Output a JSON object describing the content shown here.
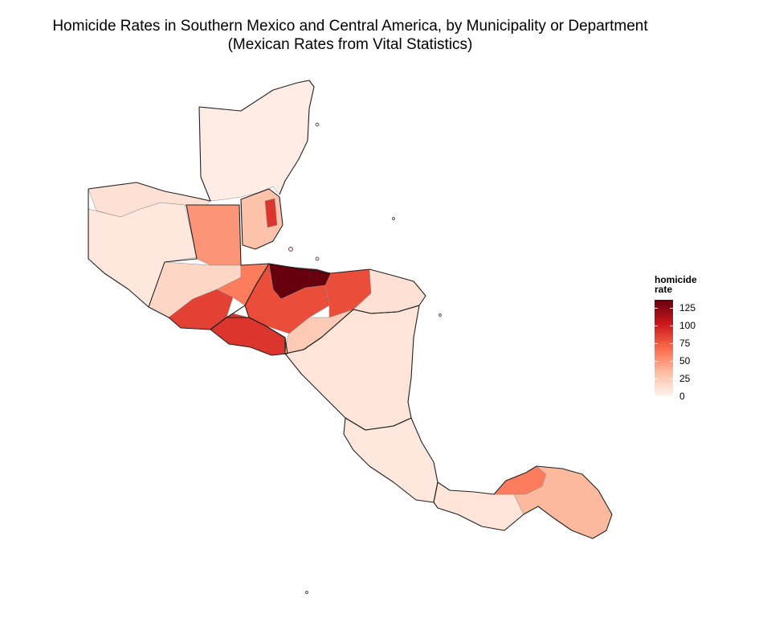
{
  "title_line1": "Homicide Rates in Southern Mexico and Central America, by Municipality or Department",
  "title_line2": "(Mexican Rates from Vital Statistics)",
  "legend": {
    "title_line1": "homicide",
    "title_line2": "rate",
    "ticks": [
      "125",
      "100",
      "75",
      "50",
      "25",
      "0"
    ],
    "tick_values": [
      125,
      100,
      75,
      50,
      25,
      0
    ],
    "max_value": 136,
    "colors": [
      "#fff5f0",
      "#fcbba1",
      "#fb6a4a",
      "#cb181d",
      "#67000d"
    ]
  },
  "regions": [
    {
      "name": "yucatan-peninsula",
      "rate": 5
    },
    {
      "name": "tabasco",
      "rate": 12
    },
    {
      "name": "chiapas",
      "rate": 8
    },
    {
      "name": "peten-guatemala",
      "rate": 50
    },
    {
      "name": "belize",
      "rate": 30
    },
    {
      "name": "belize-city",
      "rate": 90
    },
    {
      "name": "western-guatemala",
      "rate": 18
    },
    {
      "name": "southern-guatemala",
      "rate": 85
    },
    {
      "name": "eastern-guatemala",
      "rate": 60
    },
    {
      "name": "el-salvador",
      "rate": 90
    },
    {
      "name": "northern-honduras",
      "rate": 136
    },
    {
      "name": "central-honduras",
      "rate": 80
    },
    {
      "name": "olancho-honduras",
      "rate": 80
    },
    {
      "name": "southern-honduras",
      "rate": 25
    },
    {
      "name": "mosquitia-honduras",
      "rate": 12
    },
    {
      "name": "nicaragua",
      "rate": 10
    },
    {
      "name": "costa-rica",
      "rate": 8
    },
    {
      "name": "panama-colon",
      "rate": 60
    },
    {
      "name": "panama-east",
      "rate": 35
    },
    {
      "name": "panama-west",
      "rate": 10
    }
  ]
}
